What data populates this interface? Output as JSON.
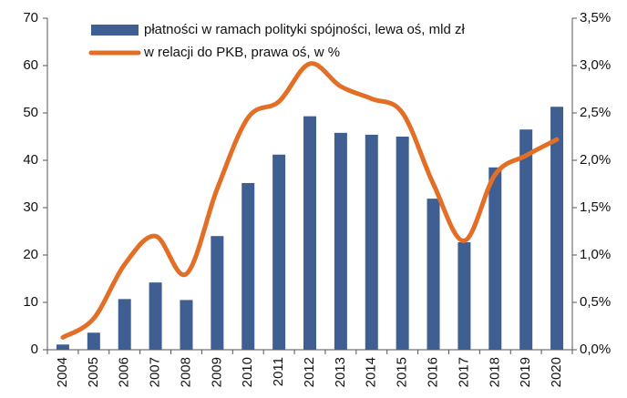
{
  "chart_data": {
    "type": "bar_line",
    "categories": [
      "2004",
      "2005",
      "2006",
      "2007",
      "2008",
      "2009",
      "2010",
      "2011",
      "2012",
      "2013",
      "2014",
      "2015",
      "2016",
      "2017",
      "2018",
      "2019",
      "2020"
    ],
    "series": [
      {
        "name": "płatności w ramach polityki spójności, lewa oś, mld zł",
        "type": "bar",
        "color": "#3f5f93",
        "axis": "y",
        "values": [
          1.1,
          3.6,
          10.7,
          14.2,
          10.5,
          24.0,
          35.2,
          41.2,
          49.3,
          45.8,
          45.4,
          45.0,
          31.9,
          22.7,
          38.5,
          46.5,
          51.3
        ]
      },
      {
        "name": "w relacji do PKB, prawa oś, w %",
        "type": "line",
        "color": "#e36f27",
        "axis": "y2",
        "values": [
          0.13,
          0.33,
          0.9,
          1.2,
          0.8,
          1.7,
          2.45,
          2.62,
          3.02,
          2.78,
          2.65,
          2.5,
          1.75,
          1.15,
          1.85,
          2.05,
          2.22
        ]
      }
    ],
    "ylim": [
      0,
      70
    ],
    "yticks": [
      0,
      10,
      20,
      30,
      40,
      50,
      60,
      70
    ],
    "y2lim": [
      0,
      3.5
    ],
    "y2ticks": [
      {
        "value": 0,
        "label": "0,0%"
      },
      {
        "value": 0.5,
        "label": "0,5%"
      },
      {
        "value": 1,
        "label": "1,0%"
      },
      {
        "value": 1.5,
        "label": "1,5%"
      },
      {
        "value": 2,
        "label": "2,0%"
      },
      {
        "value": 2.5,
        "label": "2,5%"
      },
      {
        "value": 3,
        "label": "3,0%"
      },
      {
        "value": 3.5,
        "label": "3,5%"
      }
    ],
    "grid": false,
    "legend": "top"
  }
}
